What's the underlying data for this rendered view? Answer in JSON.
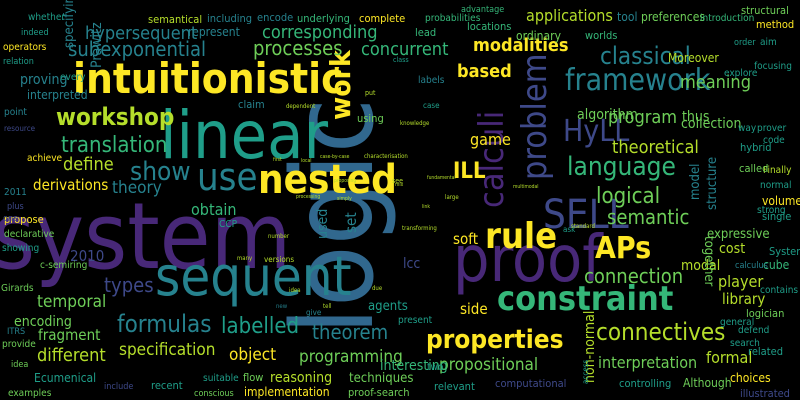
{
  "colors": {
    "background": "#000000",
    "yellow": "#fde725",
    "lime": "#b5de2b",
    "green": "#6ece58",
    "seagreen": "#35b779",
    "teal": "#1f9e89",
    "cyan": "#26828e",
    "blue": "#31688e",
    "indigo": "#3e4989",
    "purple": "#482878",
    "darkpurple": "#440154"
  },
  "words": [
    {
      "text": "system"
    },
    {
      "text": "logic"
    },
    {
      "text": "linear"
    },
    {
      "text": "proof"
    },
    {
      "text": "sequent"
    },
    {
      "text": "intuitionistic"
    },
    {
      "text": "constraint"
    },
    {
      "text": "nested"
    },
    {
      "text": "calculi"
    },
    {
      "text": "problem"
    },
    {
      "text": "SELL"
    },
    {
      "text": "framework"
    },
    {
      "text": "rule"
    },
    {
      "text": "HyLL"
    },
    {
      "text": "APs"
    },
    {
      "text": "language"
    },
    {
      "text": "use"
    },
    {
      "text": "show"
    },
    {
      "text": "classical"
    },
    {
      "text": "logical"
    },
    {
      "text": "formulas"
    },
    {
      "text": "properties"
    },
    {
      "text": "connectives"
    },
    {
      "text": "workshop"
    },
    {
      "text": "work"
    },
    {
      "text": "translation"
    },
    {
      "text": "ILL"
    },
    {
      "text": "semantic"
    },
    {
      "text": "connection"
    },
    {
      "text": "types"
    },
    {
      "text": "labelled"
    },
    {
      "text": "theorem"
    },
    {
      "text": "modalities"
    },
    {
      "text": "based"
    },
    {
      "text": "processes"
    },
    {
      "text": "corresponding"
    },
    {
      "text": "subexponential"
    },
    {
      "text": "hypersequent"
    },
    {
      "text": "concurrent"
    },
    {
      "text": "applications"
    },
    {
      "text": "meaning"
    },
    {
      "text": "program"
    },
    {
      "text": "theoretical"
    },
    {
      "text": "define"
    },
    {
      "text": "theory"
    },
    {
      "text": "derivations"
    },
    {
      "text": "obtain"
    },
    {
      "text": "specification"
    },
    {
      "text": "object"
    },
    {
      "text": "programming"
    },
    {
      "text": "different"
    },
    {
      "text": "fragment"
    },
    {
      "text": "temporal"
    },
    {
      "text": "encoding"
    },
    {
      "text": "2010"
    },
    {
      "text": "propositional"
    },
    {
      "text": "interpretation"
    },
    {
      "text": "non-normal"
    },
    {
      "text": "formal"
    },
    {
      "text": "player"
    },
    {
      "text": "library"
    },
    {
      "text": "side"
    },
    {
      "text": "game"
    },
    {
      "text": "soft"
    },
    {
      "text": "set"
    },
    {
      "text": "used"
    },
    {
      "text": "lcc"
    },
    {
      "text": "modal"
    },
    {
      "text": "cost"
    },
    {
      "text": "expressive"
    },
    {
      "text": "together"
    },
    {
      "text": "collection"
    },
    {
      "text": "algorithm"
    },
    {
      "text": "thus"
    },
    {
      "text": "model"
    },
    {
      "text": "structure"
    },
    {
      "text": "interesting"
    },
    {
      "text": "reasoning"
    },
    {
      "text": "techniques"
    },
    {
      "text": "implementation"
    },
    {
      "text": "Ecumenical"
    },
    {
      "text": "agents"
    },
    {
      "text": "proof-search"
    },
    {
      "text": "computational"
    },
    {
      "text": "Prawitz"
    },
    {
      "text": "specifying"
    },
    {
      "text": "proving"
    },
    {
      "text": "interpreted"
    },
    {
      "text": "represent"
    },
    {
      "text": "semantical"
    },
    {
      "text": "including"
    },
    {
      "text": "encode"
    },
    {
      "text": "underlying"
    },
    {
      "text": "complete"
    },
    {
      "text": "probabilities"
    },
    {
      "text": "advantage"
    },
    {
      "text": "tool"
    },
    {
      "text": "preferences"
    },
    {
      "text": "introduction"
    },
    {
      "text": "structural"
    },
    {
      "text": "method"
    },
    {
      "text": "whether"
    },
    {
      "text": "indeed"
    },
    {
      "text": "operators"
    },
    {
      "text": "relation"
    },
    {
      "text": "every"
    },
    {
      "text": "point"
    },
    {
      "text": "resource"
    },
    {
      "text": "achieve"
    },
    {
      "text": "2011"
    },
    {
      "text": "plus"
    },
    {
      "text": "propose"
    },
    {
      "text": "declarative"
    },
    {
      "text": "one"
    },
    {
      "text": "showing"
    },
    {
      "text": "c-semiring"
    },
    {
      "text": "Girards"
    },
    {
      "text": "ITRS"
    },
    {
      "text": "provide"
    },
    {
      "text": "idea"
    },
    {
      "text": "examples"
    },
    {
      "text": "include"
    },
    {
      "text": "recent"
    },
    {
      "text": "conscious"
    },
    {
      "text": "suitable"
    },
    {
      "text": "flow"
    },
    {
      "text": "relevant"
    },
    {
      "text": "two"
    },
    {
      "text": "controlling"
    },
    {
      "text": "Although"
    },
    {
      "text": "choices"
    },
    {
      "text": "illustrated"
    },
    {
      "text": "related"
    },
    {
      "text": "search"
    },
    {
      "text": "general"
    },
    {
      "text": "defend"
    },
    {
      "text": "logician"
    },
    {
      "text": "contains"
    },
    {
      "text": "cube"
    },
    {
      "text": "Systems"
    },
    {
      "text": "calculus"
    },
    {
      "text": "single"
    },
    {
      "text": "volume"
    },
    {
      "text": "strong"
    },
    {
      "text": "normal"
    },
    {
      "text": "Finally"
    },
    {
      "text": "called"
    },
    {
      "text": "hybrid"
    },
    {
      "text": "code"
    },
    {
      "text": "way"
    },
    {
      "text": "prover"
    },
    {
      "text": "focusing"
    },
    {
      "text": "explore"
    },
    {
      "text": "aim"
    },
    {
      "text": "order"
    },
    {
      "text": "Moreover"
    },
    {
      "text": "worlds"
    },
    {
      "text": "ordinary"
    },
    {
      "text": "locations"
    },
    {
      "text": "lead"
    },
    {
      "text": "claim"
    },
    {
      "text": "labels"
    },
    {
      "text": "case"
    },
    {
      "text": "using"
    },
    {
      "text": "knowledge"
    },
    {
      "text": "put"
    },
    {
      "text": "dependent"
    },
    {
      "text": "class"
    },
    {
      "text": "CCP"
    },
    {
      "text": "number"
    },
    {
      "text": "characterisation"
    },
    {
      "text": "case-by-case"
    },
    {
      "text": "first"
    },
    {
      "text": "local"
    },
    {
      "text": "ask"
    },
    {
      "text": "standard"
    },
    {
      "text": "multimodal"
    },
    {
      "text": "transforming"
    },
    {
      "text": "present"
    },
    {
      "text": "give"
    },
    {
      "text": "access"
    },
    {
      "text": "many"
    },
    {
      "text": "versions"
    },
    {
      "text": "processing"
    },
    {
      "text": "simply"
    },
    {
      "text": "proposing"
    },
    {
      "text": "large"
    },
    {
      "text": "see"
    },
    {
      "text": "fundamental"
    },
    {
      "text": "mix"
    },
    {
      "text": "link"
    },
    {
      "text": "due"
    },
    {
      "text": "idea"
    },
    {
      "text": "new"
    },
    {
      "text": "tell"
    }
  ]
}
